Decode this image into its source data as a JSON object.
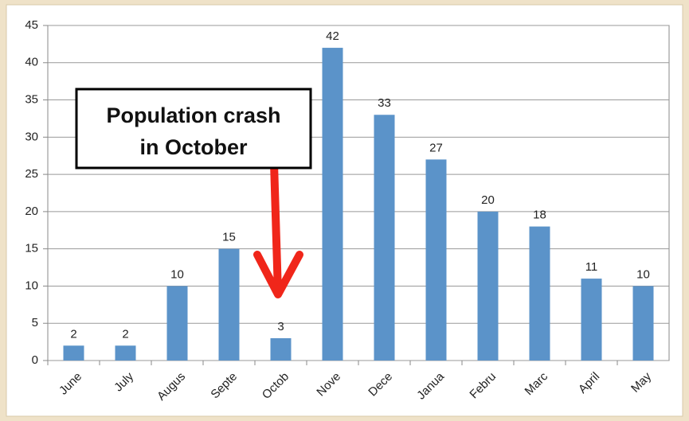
{
  "chart_data": {
    "type": "bar",
    "categories": [
      "June",
      "July",
      "Augus",
      "Septe",
      "Octob",
      "Nove",
      "Dece",
      "Janua",
      "Febru",
      "Marc",
      "April",
      "May"
    ],
    "values": [
      2,
      2,
      10,
      15,
      3,
      42,
      33,
      27,
      20,
      18,
      11,
      10
    ],
    "color": "#5b93c9",
    "ylim": [
      0,
      45
    ],
    "yticks": [
      0,
      5,
      10,
      15,
      20,
      25,
      30,
      35,
      40,
      45
    ],
    "grid": true,
    "annotation": [
      "Population crash",
      "in October"
    ]
  }
}
